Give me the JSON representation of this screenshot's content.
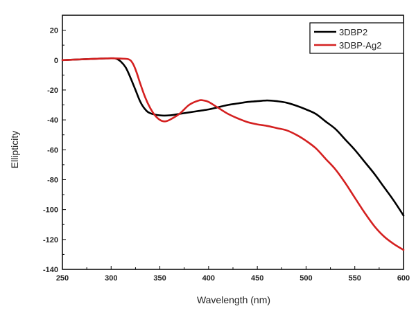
{
  "chart_data": {
    "type": "line",
    "title": "",
    "xlabel": "Wavelength (nm)",
    "ylabel": "Ellipticity",
    "xlim": [
      250,
      600
    ],
    "ylim": [
      -140,
      30
    ],
    "xticks": [
      250,
      300,
      350,
      400,
      450,
      500,
      550,
      600
    ],
    "yticks": [
      20,
      0,
      -20,
      -40,
      -60,
      -80,
      -100,
      -120,
      -140
    ],
    "legend_position": "top-right",
    "series": [
      {
        "name": "3DBP2",
        "color": "#000000",
        "points": [
          [
            250,
            0
          ],
          [
            270,
            0.5
          ],
          [
            290,
            1
          ],
          [
            300,
            1.2
          ],
          [
            305,
            1
          ],
          [
            310,
            -1
          ],
          [
            315,
            -5
          ],
          [
            320,
            -12
          ],
          [
            325,
            -20
          ],
          [
            330,
            -28
          ],
          [
            335,
            -33
          ],
          [
            340,
            -35.5
          ],
          [
            350,
            -37
          ],
          [
            360,
            -37
          ],
          [
            370,
            -36
          ],
          [
            380,
            -35
          ],
          [
            390,
            -34
          ],
          [
            400,
            -33
          ],
          [
            410,
            -31.5
          ],
          [
            420,
            -30
          ],
          [
            430,
            -29
          ],
          [
            440,
            -28
          ],
          [
            450,
            -27.5
          ],
          [
            460,
            -27
          ],
          [
            470,
            -27.5
          ],
          [
            480,
            -28.5
          ],
          [
            490,
            -30.5
          ],
          [
            500,
            -33
          ],
          [
            510,
            -36
          ],
          [
            520,
            -41
          ],
          [
            530,
            -46
          ],
          [
            540,
            -53
          ],
          [
            550,
            -60
          ],
          [
            560,
            -68
          ],
          [
            570,
            -76
          ],
          [
            580,
            -85
          ],
          [
            590,
            -94
          ],
          [
            600,
            -104
          ]
        ]
      },
      {
        "name": "3DBP-Ag2",
        "color": "#d42020",
        "points": [
          [
            250,
            0
          ],
          [
            270,
            0.5
          ],
          [
            290,
            1
          ],
          [
            300,
            1.2
          ],
          [
            310,
            1
          ],
          [
            318,
            0.5
          ],
          [
            322,
            -2
          ],
          [
            326,
            -8
          ],
          [
            330,
            -16
          ],
          [
            335,
            -25
          ],
          [
            340,
            -32
          ],
          [
            345,
            -37
          ],
          [
            350,
            -40
          ],
          [
            355,
            -41
          ],
          [
            360,
            -40
          ],
          [
            370,
            -36
          ],
          [
            380,
            -30
          ],
          [
            390,
            -27
          ],
          [
            395,
            -27
          ],
          [
            400,
            -28
          ],
          [
            410,
            -32
          ],
          [
            420,
            -36
          ],
          [
            430,
            -39
          ],
          [
            440,
            -41.5
          ],
          [
            450,
            -43
          ],
          [
            460,
            -44
          ],
          [
            470,
            -45.5
          ],
          [
            480,
            -47
          ],
          [
            490,
            -50
          ],
          [
            500,
            -54
          ],
          [
            510,
            -59
          ],
          [
            520,
            -66
          ],
          [
            530,
            -73
          ],
          [
            540,
            -82
          ],
          [
            550,
            -92
          ],
          [
            560,
            -102
          ],
          [
            570,
            -111
          ],
          [
            580,
            -118
          ],
          [
            590,
            -123
          ],
          [
            600,
            -127
          ]
        ]
      }
    ]
  }
}
